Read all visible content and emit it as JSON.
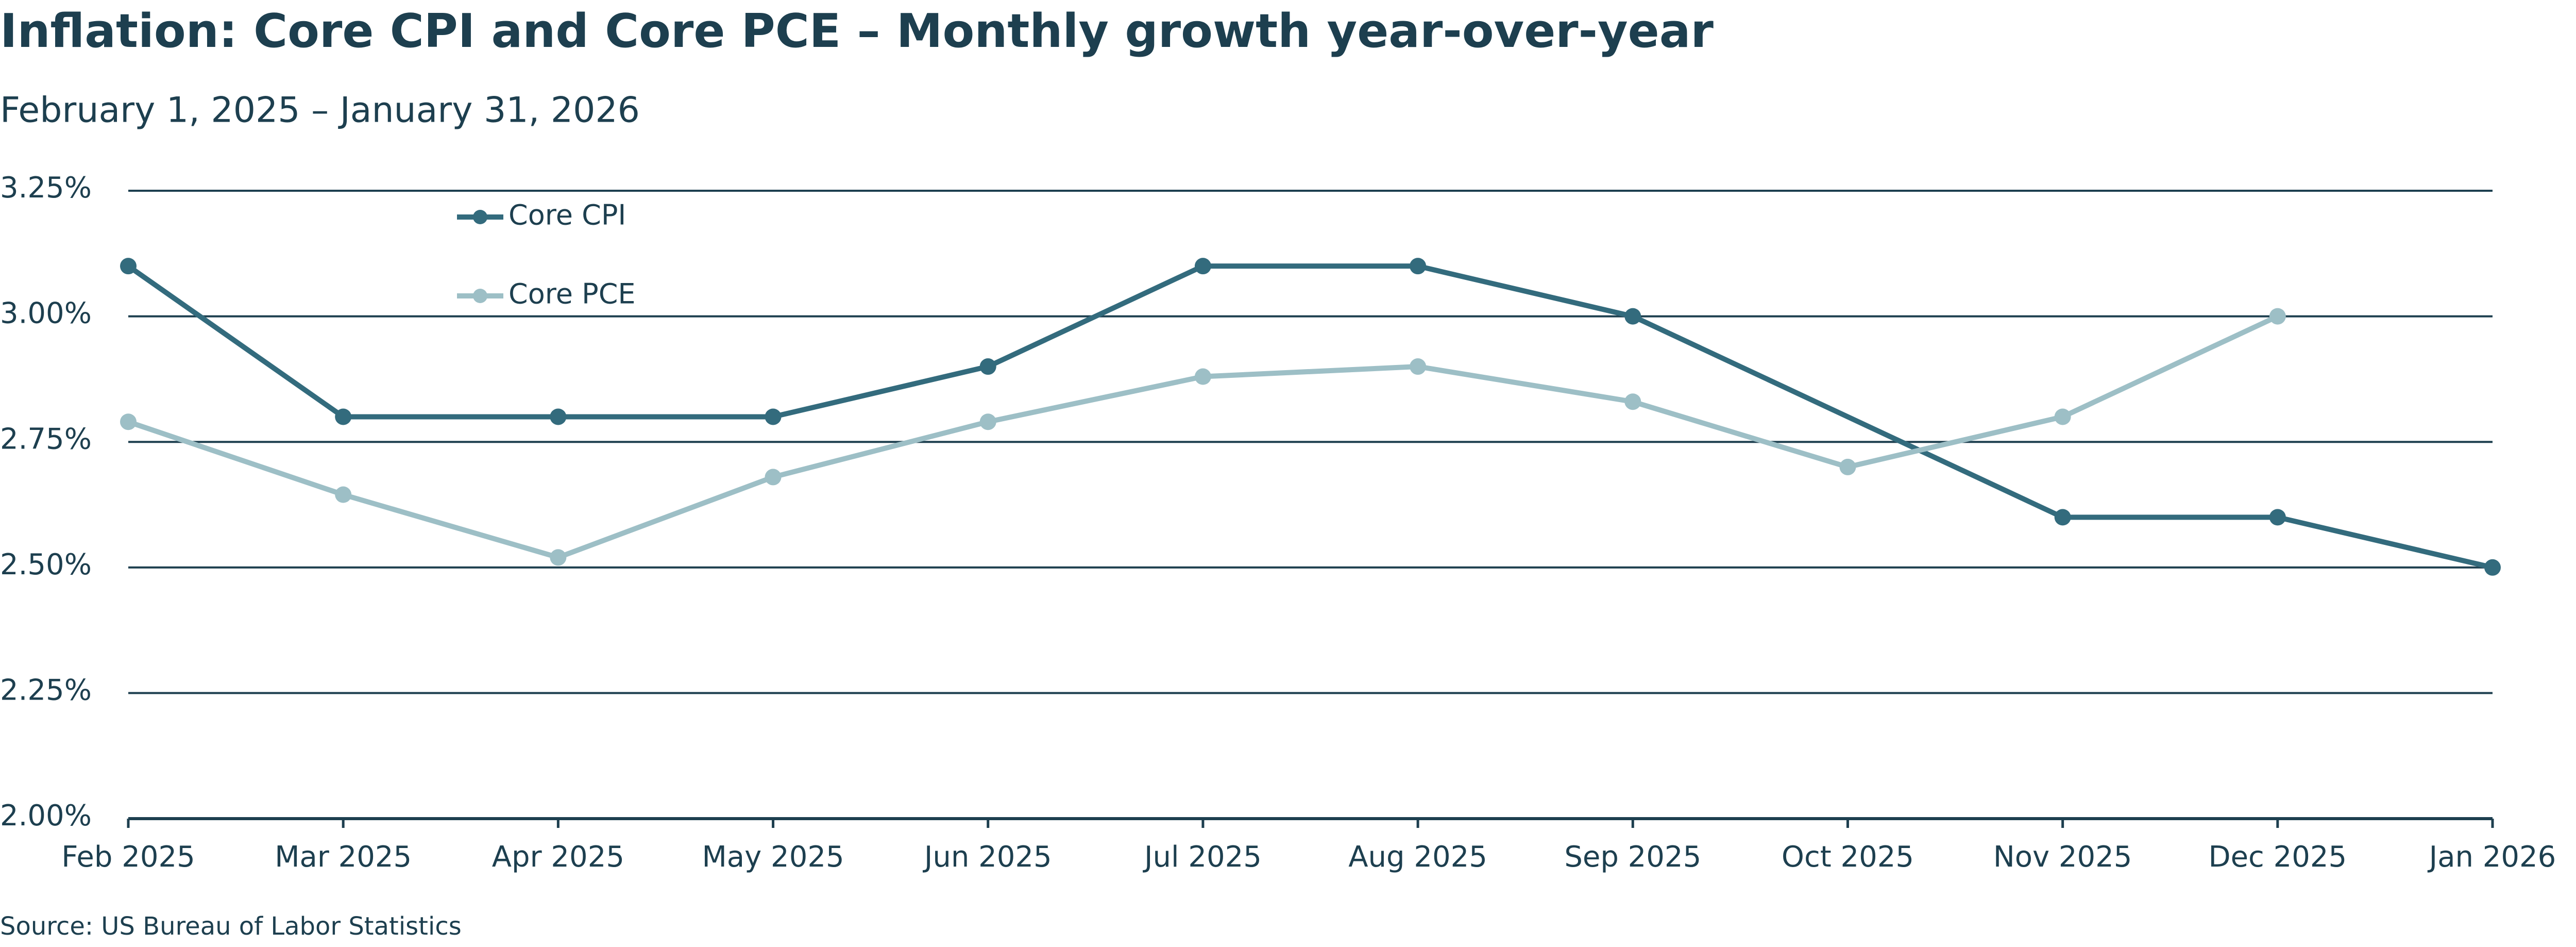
{
  "chart_data": {
    "type": "line",
    "title": "Inflation: Core CPI and Core PCE – Monthly growth year-over-year",
    "subtitle": "February 1, 2025 – January 31, 2026",
    "source": "Source: US Bureau of Labor Statistics",
    "categories": [
      "Feb 2025",
      "Mar 2025",
      "Apr 2025",
      "May 2025",
      "Jun 2025",
      "Jul 2025",
      "Aug 2025",
      "Sep 2025",
      "Oct 2025",
      "Nov 2025",
      "Dec 2025",
      "Jan 2026"
    ],
    "series": [
      {
        "name": "Core CPI",
        "color": "#336b7d",
        "values": [
          3.1,
          2.8,
          2.8,
          2.8,
          2.9,
          3.1,
          3.1,
          3.0,
          null,
          2.6,
          2.6,
          2.5
        ]
      },
      {
        "name": "Core PCE",
        "color": "#9dbfc6",
        "values": [
          2.79,
          2.645,
          2.52,
          2.68,
          2.79,
          2.88,
          2.9,
          2.83,
          2.7,
          2.8,
          3.0,
          null
        ]
      }
    ],
    "ylim": [
      2.0,
      3.25
    ],
    "yticks": [
      {
        "value": 2.0,
        "label": "2.00%"
      },
      {
        "value": 2.25,
        "label": "2.25%"
      },
      {
        "value": 2.5,
        "label": "2.50%"
      },
      {
        "value": 2.75,
        "label": "2.75%"
      },
      {
        "value": 3.0,
        "label": "3.00%"
      },
      {
        "value": 3.25,
        "label": "3.25%"
      }
    ],
    "grid": true,
    "legend": "upper left"
  }
}
